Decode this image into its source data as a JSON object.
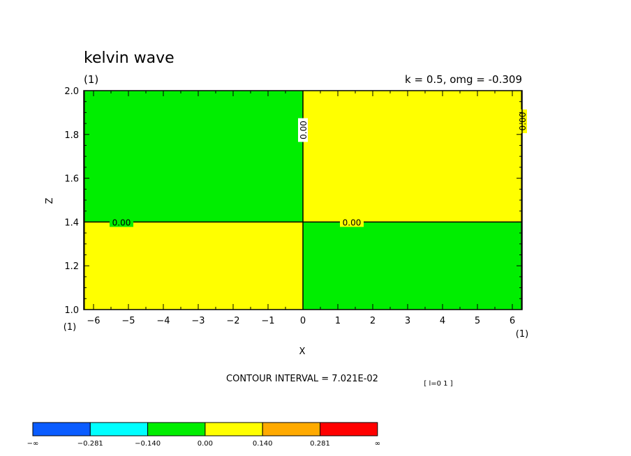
{
  "title": "kelvin wave",
  "subtitle_left": "(1)",
  "subtitle_right": "k = 0.5, omg = -0.309",
  "footer": {
    "contour_interval": "CONTOUR INTERVAL = 7.021E-02",
    "index": "[ l=0 1 ]",
    "x_left_tag": "(1)",
    "x_right_tag": "(1)"
  },
  "chart_data": {
    "type": "heatmap",
    "xlabel": "X",
    "ylabel": "Z",
    "xlim": [
      -6.28,
      6.28
    ],
    "ylim": [
      1.0,
      2.0
    ],
    "x_ticks": [
      -6,
      -5,
      -4,
      -3,
      -2,
      -1,
      0,
      1,
      2,
      3,
      4,
      5,
      6
    ],
    "y_ticks": [
      "1.0",
      "1.2",
      "1.4",
      "1.6",
      "1.8",
      "2.0"
    ],
    "regions": [
      {
        "x": [
          -6.28,
          0
        ],
        "z": [
          1.4,
          2.0
        ],
        "range": "-0.140 to 0.00",
        "color": "#00ee00"
      },
      {
        "x": [
          0,
          6.28
        ],
        "z": [
          1.4,
          2.0
        ],
        "range": "0.00 to 0.140",
        "color": "#ffff00"
      },
      {
        "x": [
          -6.28,
          0
        ],
        "z": [
          1.0,
          1.4
        ],
        "range": "0.00 to 0.140",
        "color": "#ffff00"
      },
      {
        "x": [
          0,
          6.28
        ],
        "z": [
          1.0,
          1.4
        ],
        "range": "-0.140 to 0.00",
        "color": "#00ee00"
      }
    ],
    "contour_labels": [
      {
        "text": "0.00",
        "x": -5.2,
        "z": 1.4,
        "rotate": false
      },
      {
        "text": "0.00",
        "x": 1.4,
        "z": 1.4,
        "rotate": false
      },
      {
        "text": "0.00",
        "x": 0,
        "z": 1.82,
        "rotate": true
      },
      {
        "text": "0.00",
        "x": 6.28,
        "z": 1.86,
        "rotate": true
      }
    ],
    "colorbar": {
      "labels": [
        "-∞",
        "-0.281",
        "-0.140",
        "0.00",
        "0.140",
        "0.281",
        "∞"
      ],
      "colors": [
        "#0a5cff",
        "#00ffff",
        "#00ee00",
        "#ffff00",
        "#ffaa00",
        "#ff0000"
      ]
    }
  }
}
